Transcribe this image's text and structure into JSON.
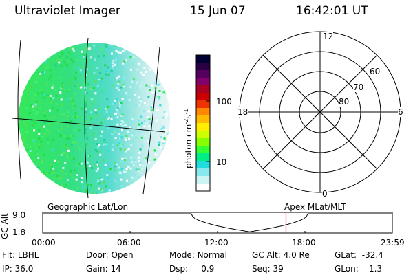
{
  "header": {
    "instrument": "Ultraviolet Imager",
    "date": "15 Jun 07",
    "time": "16:42:01 UT"
  },
  "colorbar": {
    "unit_label": "photon cm",
    "unit_exp1": "-2",
    "unit_s": "s",
    "unit_exp2": "-1",
    "ticks": [
      "100",
      "10"
    ],
    "colors": [
      "#000033",
      "#2a0044",
      "#55005e",
      "#84006b",
      "#aa0022",
      "#cc0000",
      "#ee3300",
      "#ff8800",
      "#ffbb00",
      "#ffee00",
      "#ccff00",
      "#88ff00",
      "#33ff33",
      "#00ee88",
      "#22dddd",
      "#88e8ee",
      "#ccf4f4",
      "#ffffff"
    ]
  },
  "polar": {
    "mlt_labels": [
      "12",
      "18",
      "6",
      "0"
    ],
    "mlat_labels": [
      "60",
      "70",
      "80"
    ]
  },
  "timeline": {
    "left_label": "Geographic Lat/Lon",
    "right_label": "Apex  MLat/MLT",
    "ylabel": "GC Alt",
    "ymax": "9.0",
    "ymin": "1.8",
    "xticks": [
      "00:00",
      "06:00",
      "12:00",
      "18:00",
      "23:59"
    ],
    "current_time_hours": 16.7
  },
  "status": {
    "filter_label": "Flt:",
    "filter_value": "LBHL",
    "ip_label": "IP:",
    "ip_value": "36.0",
    "door_label": "Door:",
    "door_value": "Open",
    "gain_label": "Gain:",
    "gain_value": "14",
    "mode_label": "Mode:",
    "mode_value": "Normal",
    "dsp_label": "Dsp:",
    "dsp_value": "0.9",
    "gcalt_label": "GC Alt:",
    "gcalt_value": "4.0 Re",
    "seq_label": "Seq:",
    "seq_value": "39",
    "glat_label": "GLat:",
    "glat_value": "-32.4",
    "glon_label": "GLon:",
    "glon_value": "1.3"
  }
}
